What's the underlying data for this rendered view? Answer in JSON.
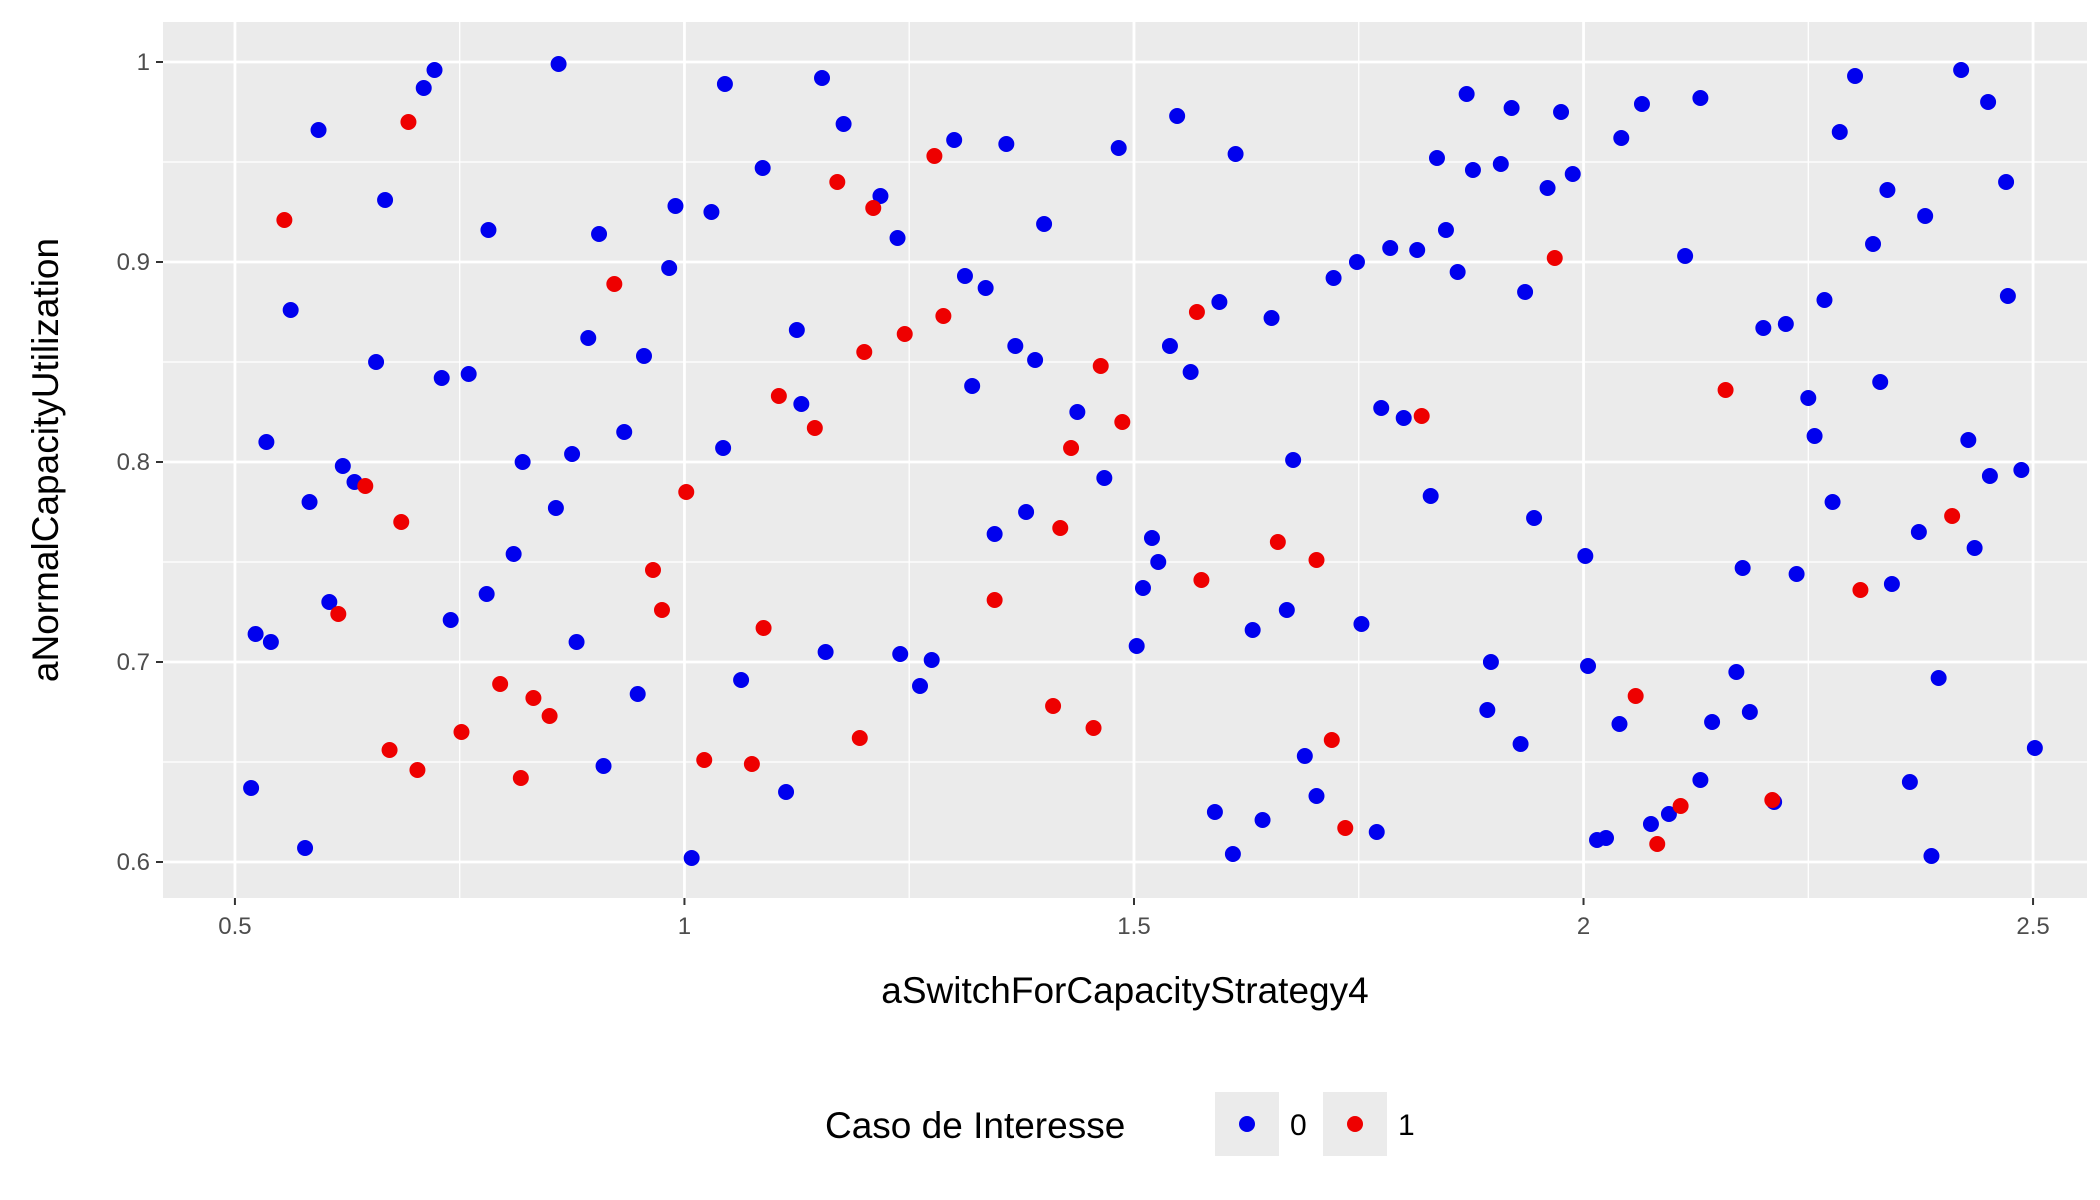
{
  "chart_data": {
    "type": "scatter",
    "title": "",
    "xlabel": "aSwitchForCapacityStrategy4",
    "ylabel": "aNormalCapacityUtilization",
    "xlim": [
      0.42,
      2.56
    ],
    "ylim": [
      0.582,
      1.02
    ],
    "x_ticks": [
      0.5,
      1.0,
      1.5,
      2.0,
      2.5
    ],
    "x_tick_labels": [
      "0.5",
      "1",
      "1.5",
      "2",
      "2.5"
    ],
    "y_ticks": [
      0.6,
      0.7,
      0.8,
      0.9,
      1.0
    ],
    "y_tick_labels": [
      "0.6",
      "0.7",
      "0.8",
      "0.9",
      "1"
    ],
    "grid": true,
    "background": "#ebebeb",
    "legend": {
      "title": "Caso de Interesse",
      "placement": "bottom",
      "entries": [
        {
          "label": "0",
          "color": "#0000ee"
        },
        {
          "label": "1",
          "color": "#ee0000"
        }
      ]
    },
    "series": [
      {
        "label": "0",
        "color": "#0000ee",
        "points": [
          [
            0.518,
            0.637
          ],
          [
            0.523,
            0.714
          ],
          [
            0.535,
            0.81
          ],
          [
            0.54,
            0.71
          ],
          [
            0.562,
            0.876
          ],
          [
            0.578,
            0.607
          ],
          [
            0.583,
            0.78
          ],
          [
            0.593,
            0.966
          ],
          [
            0.605,
            0.73
          ],
          [
            0.62,
            0.798
          ],
          [
            0.633,
            0.79
          ],
          [
            0.657,
            0.85
          ],
          [
            0.667,
            0.931
          ],
          [
            0.71,
            0.987
          ],
          [
            0.722,
            0.996
          ],
          [
            0.73,
            0.842
          ],
          [
            0.74,
            0.721
          ],
          [
            0.76,
            0.844
          ],
          [
            0.78,
            0.734
          ],
          [
            0.782,
            0.916
          ],
          [
            0.81,
            0.754
          ],
          [
            0.82,
            0.8
          ],
          [
            0.857,
            0.777
          ],
          [
            0.86,
            0.999
          ],
          [
            0.875,
            0.804
          ],
          [
            0.88,
            0.71
          ],
          [
            0.893,
            0.862
          ],
          [
            0.905,
            0.914
          ],
          [
            0.91,
            0.648
          ],
          [
            0.933,
            0.815
          ],
          [
            0.948,
            0.684
          ],
          [
            0.955,
            0.853
          ],
          [
            0.983,
            0.897
          ],
          [
            0.99,
            0.928
          ],
          [
            1.008,
            0.602
          ],
          [
            1.03,
            0.925
          ],
          [
            1.043,
            0.807
          ],
          [
            1.045,
            0.989
          ],
          [
            1.063,
            0.691
          ],
          [
            1.087,
            0.947
          ],
          [
            1.113,
            0.635
          ],
          [
            1.125,
            0.866
          ],
          [
            1.13,
            0.829
          ],
          [
            1.153,
            0.992
          ],
          [
            1.157,
            0.705
          ],
          [
            1.177,
            0.969
          ],
          [
            1.218,
            0.933
          ],
          [
            1.237,
            0.912
          ],
          [
            1.24,
            0.704
          ],
          [
            1.262,
            0.688
          ],
          [
            1.275,
            0.701
          ],
          [
            1.3,
            0.961
          ],
          [
            1.312,
            0.893
          ],
          [
            1.32,
            0.838
          ],
          [
            1.335,
            0.887
          ],
          [
            1.345,
            0.764
          ],
          [
            1.358,
            0.959
          ],
          [
            1.368,
            0.858
          ],
          [
            1.38,
            0.775
          ],
          [
            1.39,
            0.851
          ],
          [
            1.4,
            0.919
          ],
          [
            1.437,
            0.825
          ],
          [
            1.467,
            0.792
          ],
          [
            1.483,
            0.957
          ],
          [
            1.503,
            0.708
          ],
          [
            1.51,
            0.737
          ],
          [
            1.52,
            0.762
          ],
          [
            1.527,
            0.75
          ],
          [
            1.54,
            0.858
          ],
          [
            1.548,
            0.973
          ],
          [
            1.563,
            0.845
          ],
          [
            1.59,
            0.625
          ],
          [
            1.595,
            0.88
          ],
          [
            1.61,
            0.604
          ],
          [
            1.613,
            0.954
          ],
          [
            1.632,
            0.716
          ],
          [
            1.643,
            0.621
          ],
          [
            1.653,
            0.872
          ],
          [
            1.67,
            0.726
          ],
          [
            1.677,
            0.801
          ],
          [
            1.69,
            0.653
          ],
          [
            1.703,
            0.633
          ],
          [
            1.722,
            0.892
          ],
          [
            1.748,
            0.9
          ],
          [
            1.753,
            0.719
          ],
          [
            1.77,
            0.615
          ],
          [
            1.775,
            0.827
          ],
          [
            1.785,
            0.907
          ],
          [
            1.8,
            0.822
          ],
          [
            1.815,
            0.906
          ],
          [
            1.83,
            0.783
          ],
          [
            1.837,
            0.952
          ],
          [
            1.847,
            0.916
          ],
          [
            1.86,
            0.895
          ],
          [
            1.87,
            0.984
          ],
          [
            1.877,
            0.946
          ],
          [
            1.893,
            0.676
          ],
          [
            1.897,
            0.7
          ],
          [
            1.908,
            0.949
          ],
          [
            1.92,
            0.977
          ],
          [
            1.93,
            0.659
          ],
          [
            1.935,
            0.885
          ],
          [
            1.945,
            0.772
          ],
          [
            1.96,
            0.937
          ],
          [
            1.975,
            0.975
          ],
          [
            1.988,
            0.944
          ],
          [
            2.002,
            0.753
          ],
          [
            2.005,
            0.698
          ],
          [
            2.015,
            0.611
          ],
          [
            2.025,
            0.612
          ],
          [
            2.04,
            0.669
          ],
          [
            2.042,
            0.962
          ],
          [
            2.065,
            0.979
          ],
          [
            2.075,
            0.619
          ],
          [
            2.095,
            0.624
          ],
          [
            2.113,
            0.903
          ],
          [
            2.13,
            0.641
          ],
          [
            2.13,
            0.982
          ],
          [
            2.143,
            0.67
          ],
          [
            2.17,
            0.695
          ],
          [
            2.177,
            0.747
          ],
          [
            2.185,
            0.675
          ],
          [
            2.2,
            0.867
          ],
          [
            2.212,
            0.63
          ],
          [
            2.225,
            0.869
          ],
          [
            2.237,
            0.744
          ],
          [
            2.25,
            0.832
          ],
          [
            2.257,
            0.813
          ],
          [
            2.268,
            0.881
          ],
          [
            2.277,
            0.78
          ],
          [
            2.285,
            0.965
          ],
          [
            2.302,
            0.993
          ],
          [
            2.322,
            0.909
          ],
          [
            2.33,
            0.84
          ],
          [
            2.338,
            0.936
          ],
          [
            2.343,
            0.739
          ],
          [
            2.363,
            0.64
          ],
          [
            2.373,
            0.765
          ],
          [
            2.38,
            0.923
          ],
          [
            2.387,
            0.603
          ],
          [
            2.395,
            0.692
          ],
          [
            2.42,
            0.996
          ],
          [
            2.428,
            0.811
          ],
          [
            2.435,
            0.757
          ],
          [
            2.45,
            0.98
          ],
          [
            2.452,
            0.793
          ],
          [
            2.47,
            0.94
          ],
          [
            2.472,
            0.883
          ],
          [
            2.487,
            0.796
          ],
          [
            2.502,
            0.657
          ]
        ]
      },
      {
        "label": "1",
        "color": "#ee0000",
        "points": [
          [
            0.555,
            0.921
          ],
          [
            0.615,
            0.724
          ],
          [
            0.645,
            0.788
          ],
          [
            0.672,
            0.656
          ],
          [
            0.685,
            0.77
          ],
          [
            0.693,
            0.97
          ],
          [
            0.703,
            0.646
          ],
          [
            0.752,
            0.665
          ],
          [
            0.795,
            0.689
          ],
          [
            0.818,
            0.642
          ],
          [
            0.832,
            0.682
          ],
          [
            0.85,
            0.673
          ],
          [
            0.922,
            0.889
          ],
          [
            0.965,
            0.746
          ],
          [
            0.975,
            0.726
          ],
          [
            1.002,
            0.785
          ],
          [
            1.022,
            0.651
          ],
          [
            1.075,
            0.649
          ],
          [
            1.088,
            0.717
          ],
          [
            1.105,
            0.833
          ],
          [
            1.145,
            0.817
          ],
          [
            1.17,
            0.94
          ],
          [
            1.195,
            0.662
          ],
          [
            1.2,
            0.855
          ],
          [
            1.21,
            0.927
          ],
          [
            1.245,
            0.864
          ],
          [
            1.278,
            0.953
          ],
          [
            1.288,
            0.873
          ],
          [
            1.345,
            0.731
          ],
          [
            1.41,
            0.678
          ],
          [
            1.418,
            0.767
          ],
          [
            1.43,
            0.807
          ],
          [
            1.455,
            0.667
          ],
          [
            1.463,
            0.848
          ],
          [
            1.487,
            0.82
          ],
          [
            1.57,
            0.875
          ],
          [
            1.575,
            0.741
          ],
          [
            1.66,
            0.76
          ],
          [
            1.703,
            0.751
          ],
          [
            1.72,
            0.661
          ],
          [
            1.735,
            0.617
          ],
          [
            1.82,
            0.823
          ],
          [
            1.968,
            0.902
          ],
          [
            2.058,
            0.683
          ],
          [
            2.082,
            0.609
          ],
          [
            2.108,
            0.628
          ],
          [
            2.158,
            0.836
          ],
          [
            2.21,
            0.631
          ],
          [
            2.308,
            0.736
          ],
          [
            2.41,
            0.773
          ]
        ]
      }
    ]
  }
}
